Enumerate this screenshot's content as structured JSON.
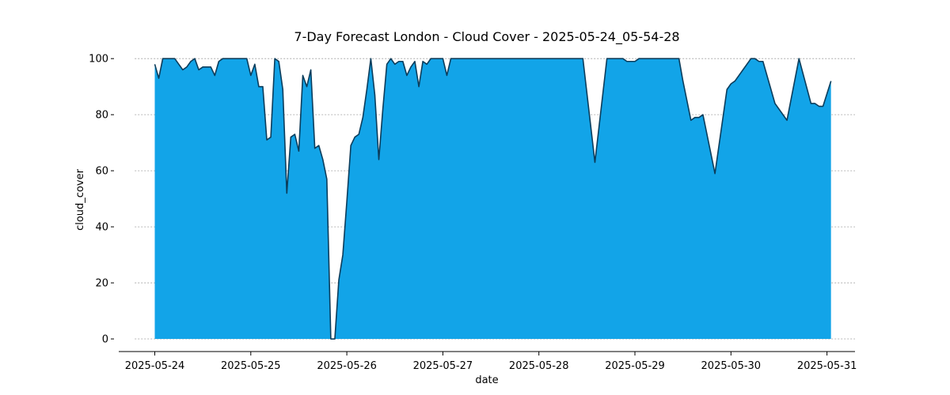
{
  "chart_data": {
    "type": "area",
    "title": "7-Day Forecast London - Cloud Cover - 2025-05-24_05-54-28",
    "xlabel": "date",
    "ylabel": "cloud_cover",
    "x_ticks": [
      "2025-05-24",
      "2025-05-25",
      "2025-05-26",
      "2025-05-27",
      "2025-05-28",
      "2025-05-29",
      "2025-05-30",
      "2025-05-31"
    ],
    "y_ticks": [
      0,
      20,
      40,
      60,
      80,
      100
    ],
    "x_range": [
      "2025-05-23T15:00",
      "2025-05-31T07:00"
    ],
    "ylim": [
      -4.5,
      104
    ],
    "grid": "horizontal dashed",
    "colors": {
      "fill": "#12a4e8",
      "line": "#0b3d5c",
      "grid": "#a0a0a0"
    },
    "series": [
      {
        "values": [
          [
            "2025-05-24T00:00",
            98
          ],
          [
            "2025-05-24T01:00",
            93
          ],
          [
            "2025-05-24T02:00",
            100
          ],
          [
            "2025-05-24T03:00",
            100
          ],
          [
            "2025-05-24T05:00",
            100
          ],
          [
            "2025-05-24T06:00",
            98
          ],
          [
            "2025-05-24T07:00",
            96
          ],
          [
            "2025-05-24T08:00",
            97
          ],
          [
            "2025-05-24T09:00",
            99
          ],
          [
            "2025-05-24T10:00",
            100
          ],
          [
            "2025-05-24T11:00",
            96
          ],
          [
            "2025-05-24T12:00",
            97
          ],
          [
            "2025-05-24T14:00",
            97
          ],
          [
            "2025-05-24T15:00",
            94
          ],
          [
            "2025-05-24T16:00",
            99
          ],
          [
            "2025-05-24T17:00",
            100
          ],
          [
            "2025-05-24T23:00",
            100
          ],
          [
            "2025-05-25T00:00",
            94
          ],
          [
            "2025-05-25T01:00",
            98
          ],
          [
            "2025-05-25T02:00",
            90
          ],
          [
            "2025-05-25T03:00",
            90
          ],
          [
            "2025-05-25T04:00",
            71
          ],
          [
            "2025-05-25T05:00",
            72
          ],
          [
            "2025-05-25T06:00",
            100
          ],
          [
            "2025-05-25T07:00",
            99
          ],
          [
            "2025-05-25T08:00",
            89
          ],
          [
            "2025-05-25T09:00",
            52
          ],
          [
            "2025-05-25T10:00",
            72
          ],
          [
            "2025-05-25T11:00",
            73
          ],
          [
            "2025-05-25T12:00",
            67
          ],
          [
            "2025-05-25T13:00",
            94
          ],
          [
            "2025-05-25T14:00",
            90
          ],
          [
            "2025-05-25T15:00",
            96
          ],
          [
            "2025-05-25T16:00",
            68
          ],
          [
            "2025-05-25T17:00",
            69
          ],
          [
            "2025-05-25T18:00",
            64
          ],
          [
            "2025-05-25T19:00",
            57
          ],
          [
            "2025-05-25T20:00",
            0
          ],
          [
            "2025-05-25T21:00",
            0
          ],
          [
            "2025-05-25T22:00",
            21
          ],
          [
            "2025-05-25T23:00",
            30
          ],
          [
            "2025-05-26T00:00",
            49
          ],
          [
            "2025-05-26T01:00",
            69
          ],
          [
            "2025-05-26T02:00",
            72
          ],
          [
            "2025-05-26T03:00",
            73
          ],
          [
            "2025-05-26T04:00",
            79
          ],
          [
            "2025-05-26T05:00",
            89
          ],
          [
            "2025-05-26T06:00",
            100
          ],
          [
            "2025-05-26T07:00",
            87
          ],
          [
            "2025-05-26T08:00",
            64
          ],
          [
            "2025-05-26T09:00",
            82
          ],
          [
            "2025-05-26T10:00",
            98
          ],
          [
            "2025-05-26T11:00",
            100
          ],
          [
            "2025-05-26T12:00",
            98
          ],
          [
            "2025-05-26T13:00",
            99
          ],
          [
            "2025-05-26T14:00",
            99
          ],
          [
            "2025-05-26T15:00",
            94
          ],
          [
            "2025-05-26T16:00",
            97
          ],
          [
            "2025-05-26T17:00",
            99
          ],
          [
            "2025-05-26T18:00",
            90
          ],
          [
            "2025-05-26T19:00",
            99
          ],
          [
            "2025-05-26T20:00",
            98
          ],
          [
            "2025-05-26T21:00",
            100
          ],
          [
            "2025-05-27T00:00",
            100
          ],
          [
            "2025-05-27T01:00",
            94
          ],
          [
            "2025-05-27T02:00",
            100
          ],
          [
            "2025-05-28T11:00",
            100
          ],
          [
            "2025-05-28T14:00",
            63
          ],
          [
            "2025-05-28T17:00",
            100
          ],
          [
            "2025-05-28T21:00",
            100
          ],
          [
            "2025-05-28T22:00",
            99
          ],
          [
            "2025-05-29T00:00",
            99
          ],
          [
            "2025-05-29T01:00",
            100
          ],
          [
            "2025-05-29T11:00",
            100
          ],
          [
            "2025-05-29T12:00",
            92
          ],
          [
            "2025-05-29T14:00",
            78
          ],
          [
            "2025-05-29T15:00",
            79
          ],
          [
            "2025-05-29T16:00",
            79
          ],
          [
            "2025-05-29T17:00",
            80
          ],
          [
            "2025-05-29T20:00",
            59
          ],
          [
            "2025-05-29T23:00",
            89
          ],
          [
            "2025-05-30T00:00",
            91
          ],
          [
            "2025-05-30T01:00",
            92
          ],
          [
            "2025-05-30T03:00",
            96
          ],
          [
            "2025-05-30T05:00",
            100
          ],
          [
            "2025-05-30T06:00",
            100
          ],
          [
            "2025-05-30T07:00",
            99
          ],
          [
            "2025-05-30T08:00",
            99
          ],
          [
            "2025-05-30T11:00",
            84
          ],
          [
            "2025-05-30T14:00",
            78
          ],
          [
            "2025-05-30T17:00",
            100
          ],
          [
            "2025-05-30T20:00",
            84
          ],
          [
            "2025-05-30T21:00",
            84
          ],
          [
            "2025-05-30T22:00",
            83
          ],
          [
            "2025-05-30T23:00",
            83
          ],
          [
            "2025-05-31T01:00",
            92
          ]
        ]
      }
    ]
  }
}
